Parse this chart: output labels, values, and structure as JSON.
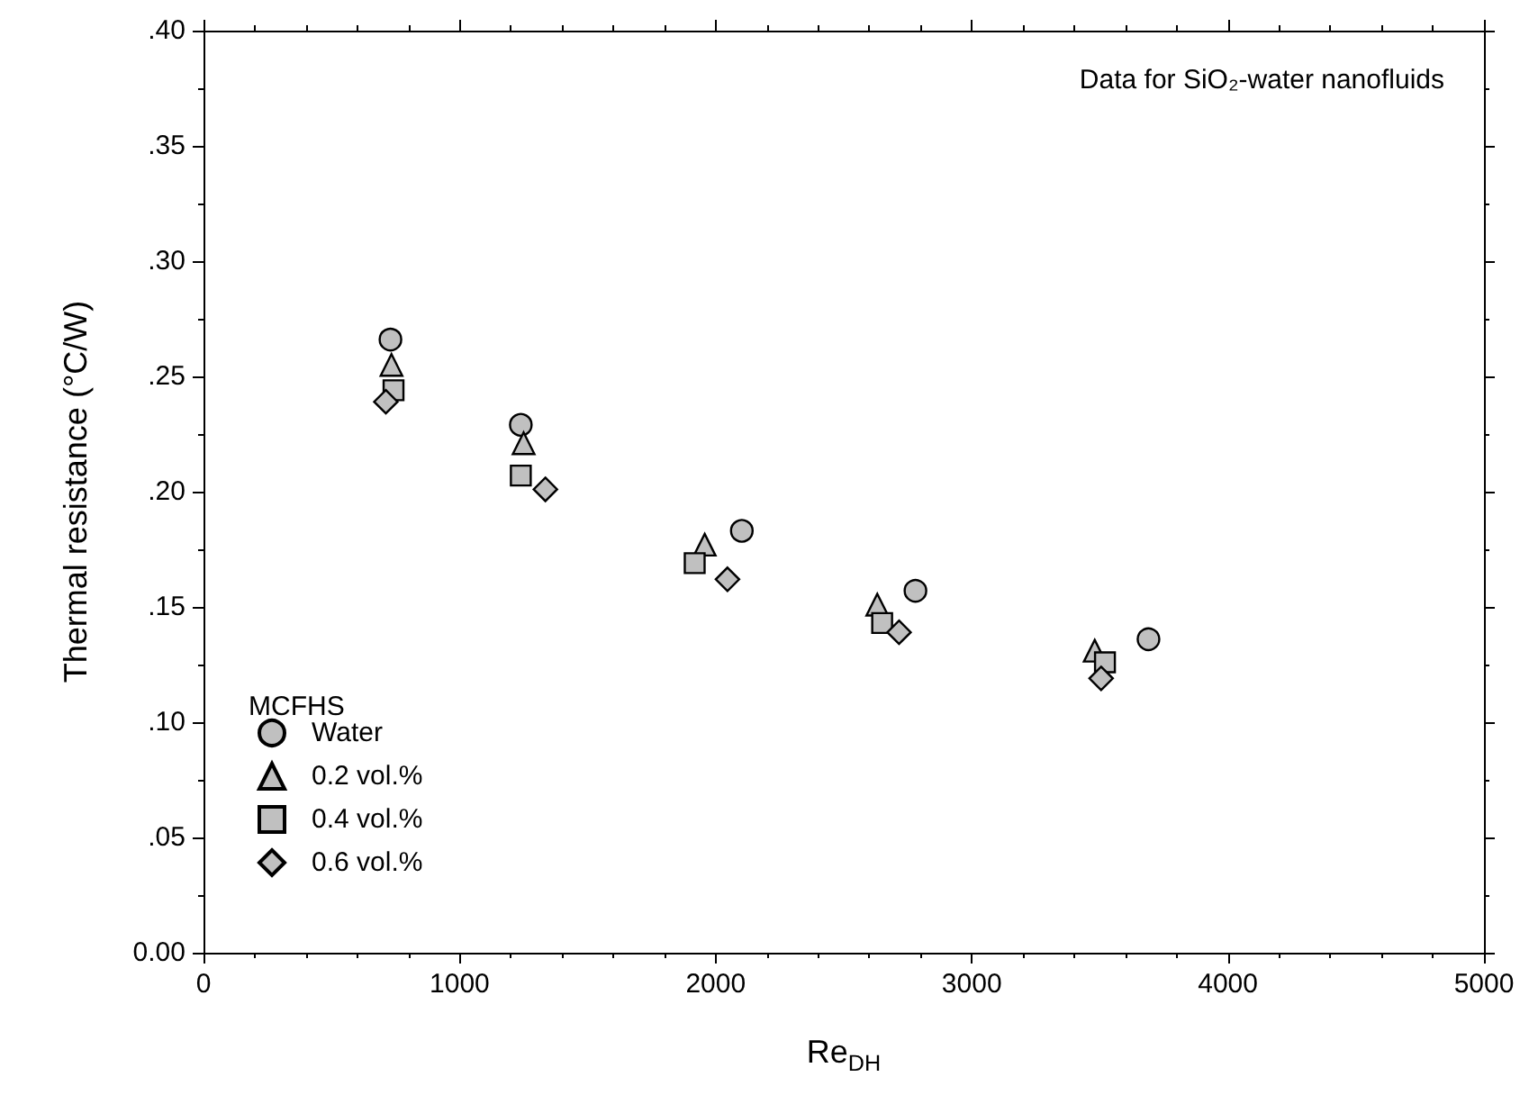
{
  "chart_data": {
    "type": "scatter",
    "xlabel": "Re$_{DH}$",
    "ylabel": "Thermal resistance (°C/W)",
    "annotations": [
      "Data for SiO₂-water nanofluids"
    ],
    "legend_title": "MCFHS",
    "legend": "bottom left",
    "grid": false,
    "xlim": [
      0,
      5000
    ],
    "xticks": [
      0,
      1000,
      2000,
      3000,
      4000,
      5000
    ],
    "ylim": [
      0,
      0.4
    ],
    "yticks": [
      {
        "value": 0,
        "label": "0.00"
      },
      {
        "value": 0.05,
        "label": ".05"
      },
      {
        "value": 0.1,
        "label": ".10"
      },
      {
        "value": 0.15,
        "label": ".15"
      },
      {
        "value": 0.2,
        "label": ".20"
      },
      {
        "value": 0.25,
        "label": ".25"
      },
      {
        "value": 0.3,
        "label": ".30"
      },
      {
        "value": 0.35,
        "label": ".35"
      },
      {
        "value": 0.4,
        "label": ".40"
      }
    ],
    "series": [
      {
        "name": "Water",
        "color": "#c0c0c0",
        "marker": "circle",
        "x": [
          730,
          1239,
          2102,
          2780,
          3690
        ],
        "values": [
          0.266,
          0.229,
          0.183,
          0.157,
          0.136
        ]
      },
      {
        "name": "0.2 vol.%",
        "color": "#c0c0c0",
        "marker": "triangle",
        "x": [
          734,
          1250,
          1957,
          2631,
          3480
        ],
        "values": [
          0.255,
          0.221,
          0.177,
          0.151,
          0.131
        ]
      },
      {
        "name": "0.4 vol.%",
        "color": "#c0c0c0",
        "marker": "square",
        "x": [
          742,
          1239,
          1918,
          2650,
          3520
        ],
        "values": [
          0.244,
          0.207,
          0.169,
          0.143,
          0.126
        ]
      },
      {
        "name": "0.6 vol.%",
        "color": "#c0c0c0",
        "marker": "diamond",
        "x": [
          712,
          1335,
          2046,
          2716,
          3505
        ],
        "values": [
          0.239,
          0.201,
          0.162,
          0.139,
          0.119
        ]
      }
    ]
  }
}
